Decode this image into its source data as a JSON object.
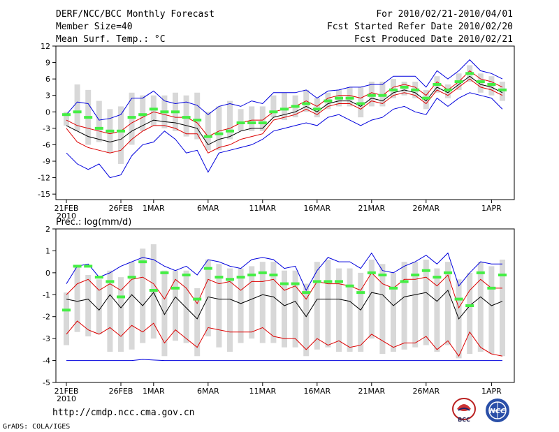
{
  "header": {
    "title": "DERF/NCC/BCC Monthly Forecast",
    "member_size": "Member Size=40",
    "variable": "Mean Surf. Temp.: °C",
    "period": "For 2010/02/21-2010/04/01",
    "started": "Fcst Started Refer Date 2010/02/20",
    "produced": "Fcst Produced Date 2010/02/21"
  },
  "footer": {
    "url": "http://cmdp.ncc.cma.gov.cn",
    "grads": "GrADS: COLA/IGES",
    "logo_bcc": "BCC",
    "logo_ncc": "NCC"
  },
  "colors": {
    "max": "#0000dd",
    "pct": "#dd0000",
    "mean": "#000000",
    "median": "#44ee44",
    "box": "#d8d8d8"
  },
  "chart_data": [
    {
      "type": "box",
      "name": "temperature",
      "ylabel": "",
      "ylim": [
        -16,
        12
      ],
      "yticks": [
        -15,
        -12,
        -9,
        -6,
        -3,
        0,
        3,
        6,
        9,
        12
      ],
      "xticks": [
        {
          "i": 0,
          "label": "21FEB",
          "sub": "2010"
        },
        {
          "i": 5,
          "label": "26FEB"
        },
        {
          "i": 8,
          "label": "1MAR"
        },
        {
          "i": 13,
          "label": "6MAR"
        },
        {
          "i": 18,
          "label": "11MAR"
        },
        {
          "i": 23,
          "label": "16MAR"
        },
        {
          "i": 28,
          "label": "21MAR"
        },
        {
          "i": 33,
          "label": "26MAR"
        },
        {
          "i": 39,
          "label": "1APR"
        }
      ],
      "max": [
        -0.5,
        1.8,
        1.5,
        -1.5,
        -1.2,
        -0.5,
        2.5,
        2.5,
        3.8,
        2.0,
        1.5,
        1.8,
        1.2,
        -0.5,
        1.0,
        1.5,
        1.0,
        2.0,
        1.5,
        3.5,
        3.5,
        3.5,
        4.0,
        2.5,
        3.8,
        4.0,
        4.5,
        4.5,
        5.0,
        5.0,
        6.5,
        6.5,
        6.5,
        4.5,
        7.5,
        6.0,
        7.5,
        9.5,
        7.5,
        7.0,
        6.0
      ],
      "p90": [
        -1.5,
        -2.5,
        -3.0,
        -3.5,
        -4.0,
        -3.5,
        -2.0,
        -1.0,
        0.0,
        -0.5,
        -1.0,
        -1.0,
        -2.0,
        -4.5,
        -3.5,
        -3.0,
        -2.0,
        -1.5,
        -1.5,
        0.0,
        0.5,
        1.0,
        2.0,
        1.0,
        2.5,
        3.0,
        3.0,
        2.5,
        3.5,
        3.0,
        4.5,
        5.0,
        4.5,
        3.0,
        5.5,
        4.0,
        5.5,
        7.5,
        6.0,
        5.5,
        4.5
      ],
      "mean": [
        -2.5,
        -3.5,
        -4.5,
        -5.0,
        -5.5,
        -5.0,
        -3.5,
        -2.5,
        -1.5,
        -1.8,
        -2.0,
        -2.5,
        -3.0,
        -6.0,
        -5.0,
        -4.5,
        -3.5,
        -3.0,
        -3.0,
        -1.0,
        -0.5,
        0.0,
        1.0,
        0.0,
        1.5,
        2.0,
        2.0,
        1.0,
        2.5,
        2.0,
        3.5,
        4.0,
        3.5,
        2.0,
        4.5,
        3.5,
        5.0,
        6.5,
        5.0,
        4.5,
        3.5
      ],
      "p10": [
        -3.0,
        -5.5,
        -6.5,
        -7.0,
        -7.5,
        -7.0,
        -5.0,
        -3.5,
        -2.5,
        -2.5,
        -3.0,
        -4.0,
        -4.0,
        -7.5,
        -6.5,
        -6.0,
        -5.0,
        -4.5,
        -4.0,
        -1.5,
        -1.0,
        -0.5,
        0.5,
        -0.5,
        1.0,
        1.5,
        1.5,
        0.5,
        2.0,
        1.5,
        3.0,
        3.5,
        3.0,
        1.5,
        4.0,
        3.0,
        4.5,
        6.0,
        4.5,
        4.0,
        3.0
      ],
      "min": [
        -7.5,
        -9.5,
        -10.5,
        -9.5,
        -12.0,
        -11.5,
        -8.0,
        -6.0,
        -5.5,
        -3.5,
        -5.0,
        -7.5,
        -7.0,
        -11.0,
        -7.5,
        -7.0,
        -6.5,
        -6.0,
        -5.0,
        -3.5,
        -3.0,
        -2.5,
        -2.0,
        -2.5,
        -1.0,
        -0.5,
        -1.5,
        -2.5,
        -1.5,
        -1.0,
        0.5,
        1.0,
        0.0,
        -0.5,
        2.5,
        1.0,
        2.5,
        3.5,
        3.0,
        2.5,
        0.5
      ],
      "box_hi": [
        0.0,
        5.0,
        4.0,
        2.0,
        0.5,
        1.0,
        3.5,
        3.0,
        3.0,
        3.0,
        3.5,
        3.0,
        3.5,
        0.0,
        1.0,
        2.0,
        0.5,
        1.0,
        1.0,
        3.0,
        3.5,
        3.0,
        4.0,
        2.5,
        3.5,
        4.0,
        4.5,
        4.5,
        5.5,
        5.5,
        6.0,
        5.5,
        5.5,
        4.0,
        6.5,
        5.0,
        7.0,
        8.5,
        7.0,
        6.5,
        5.5
      ],
      "box_lo": [
        -2.5,
        -3.5,
        -6.0,
        -5.5,
        -7.5,
        -9.5,
        -6.0,
        -3.5,
        -2.5,
        -3.0,
        -3.5,
        -4.5,
        -5.0,
        -7.0,
        -7.0,
        -5.0,
        -3.5,
        -3.5,
        -3.5,
        -1.0,
        -1.5,
        -1.0,
        0.0,
        -1.0,
        0.5,
        1.0,
        1.0,
        -1.0,
        1.0,
        1.0,
        2.5,
        3.0,
        2.5,
        0.5,
        3.5,
        2.5,
        4.0,
        5.5,
        3.5,
        3.0,
        2.0
      ],
      "median": [
        -0.5,
        0.0,
        -1.0,
        -3.0,
        -3.5,
        -3.5,
        -1.0,
        -0.5,
        0.5,
        0.0,
        0.0,
        -1.0,
        -1.5,
        -4.5,
        -4.0,
        -3.5,
        -2.0,
        -2.0,
        -2.0,
        0.0,
        0.5,
        1.0,
        1.5,
        0.5,
        2.0,
        2.5,
        2.5,
        1.5,
        3.0,
        3.0,
        4.0,
        4.5,
        4.0,
        2.5,
        5.0,
        4.0,
        5.5,
        7.0,
        5.5,
        5.0,
        4.0
      ]
    },
    {
      "type": "box",
      "name": "precipitation",
      "ylabel": "Prec.: log(mm/d)",
      "ylim": [
        -5,
        2
      ],
      "yticks": [
        -5,
        -4,
        -3,
        -2,
        -1,
        0,
        1,
        2
      ],
      "xticks": [
        {
          "i": 0,
          "label": "21FEB",
          "sub": "2010"
        },
        {
          "i": 5,
          "label": "26FEB"
        },
        {
          "i": 8,
          "label": "1MAR"
        },
        {
          "i": 13,
          "label": "6MAR"
        },
        {
          "i": 18,
          "label": "11MAR"
        },
        {
          "i": 23,
          "label": "16MAR"
        },
        {
          "i": 28,
          "label": "21MAR"
        },
        {
          "i": 33,
          "label": "26MAR"
        },
        {
          "i": 39,
          "label": "1APR"
        }
      ],
      "max": [
        -0.5,
        0.3,
        0.4,
        -0.2,
        0.0,
        0.3,
        0.5,
        0.7,
        0.6,
        0.3,
        0.1,
        0.3,
        -0.1,
        0.6,
        0.5,
        0.3,
        0.2,
        0.6,
        0.7,
        0.6,
        0.2,
        0.3,
        -0.8,
        0.1,
        0.7,
        0.5,
        0.5,
        0.2,
        0.9,
        0.1,
        0.0,
        0.3,
        0.5,
        0.8,
        0.4,
        0.9,
        -0.6,
        0.0,
        0.5,
        0.4,
        0.4
      ],
      "p90": [
        -1.0,
        -0.5,
        -0.3,
        -0.8,
        -0.5,
        -0.8,
        -0.3,
        -0.2,
        -0.5,
        -1.2,
        -0.3,
        -0.7,
        -1.4,
        -0.3,
        -0.5,
        -0.4,
        -0.8,
        -0.4,
        -0.4,
        -0.3,
        -0.8,
        -0.6,
        -1.2,
        -0.4,
        -0.5,
        -0.5,
        -0.6,
        -0.8,
        0.0,
        -0.5,
        -0.7,
        -0.3,
        -0.3,
        -0.2,
        -0.6,
        -0.1,
        -1.6,
        -0.8,
        -0.3,
        -0.7,
        -0.7
      ],
      "mean": [
        -1.2,
        -1.3,
        -1.2,
        -1.7,
        -1.0,
        -1.6,
        -1.0,
        -1.5,
        -0.9,
        -1.9,
        -1.1,
        -1.6,
        -2.1,
        -1.1,
        -1.2,
        -1.2,
        -1.4,
        -1.2,
        -1.0,
        -1.1,
        -1.5,
        -1.3,
        -2.0,
        -1.2,
        -1.2,
        -1.2,
        -1.3,
        -1.7,
        -0.9,
        -1.0,
        -1.5,
        -1.1,
        -1.0,
        -0.9,
        -1.3,
        -0.8,
        -2.1,
        -1.5,
        -1.1,
        -1.5,
        -1.3
      ],
      "p10": [
        -2.8,
        -2.2,
        -2.6,
        -2.8,
        -2.5,
        -2.9,
        -2.4,
        -2.7,
        -2.3,
        -3.2,
        -2.6,
        -3.0,
        -3.4,
        -2.5,
        -2.6,
        -2.7,
        -2.7,
        -2.7,
        -2.5,
        -2.9,
        -3.0,
        -3.0,
        -3.5,
        -3.0,
        -3.3,
        -3.1,
        -3.4,
        -3.3,
        -2.8,
        -3.1,
        -3.4,
        -3.2,
        -3.2,
        -2.9,
        -3.5,
        -3.1,
        -3.8,
        -2.7,
        -3.4,
        -3.7,
        -3.8
      ],
      "min": [
        -4.0,
        -4.0,
        -4.0,
        -4.0,
        -4.0,
        -4.0,
        -4.0,
        -3.95,
        -3.98,
        -4.0,
        -4.0,
        -4.0,
        -4.0,
        -4.0,
        -4.0,
        -4.0,
        -4.0,
        -4.0,
        -4.0,
        -4.0,
        -4.0,
        -4.0,
        -4.0,
        -4.0,
        -4.0,
        -4.0,
        -4.0,
        -4.0,
        -4.0,
        -4.0,
        -4.0,
        -4.0,
        -4.0,
        -4.0,
        -4.0,
        -4.0,
        -4.0,
        -4.0,
        -4.0,
        -4.0,
        -4.0
      ],
      "box_hi": [
        -0.9,
        0.3,
        -0.1,
        -0.3,
        0.1,
        -0.2,
        0.5,
        1.1,
        1.3,
        0.1,
        0.1,
        0.1,
        -0.7,
        0.6,
        0.4,
        0.2,
        0.2,
        0.3,
        0.5,
        0.5,
        0.1,
        0.1,
        -0.5,
        0.5,
        0.6,
        0.2,
        0.2,
        0.0,
        0.6,
        0.4,
        0.0,
        0.5,
        0.5,
        0.6,
        0.2,
        0.5,
        -0.3,
        0.0,
        0.5,
        0.3,
        0.6
      ],
      "box_lo": [
        -3.3,
        -2.7,
        -2.9,
        -2.8,
        -3.6,
        -3.6,
        -3.5,
        -3.2,
        -3.0,
        -3.8,
        -3.1,
        -3.2,
        -3.8,
        -2.9,
        -3.4,
        -3.6,
        -3.2,
        -3.0,
        -3.2,
        -3.2,
        -3.4,
        -3.4,
        -3.8,
        -3.5,
        -3.4,
        -3.6,
        -3.6,
        -3.6,
        -3.0,
        -3.7,
        -3.6,
        -3.5,
        -3.4,
        -3.3,
        -3.6,
        -3.3,
        -3.9,
        -3.7,
        -3.6,
        -3.7,
        -3.8
      ],
      "median": [
        -1.7,
        0.3,
        0.3,
        -0.2,
        -0.4,
        -1.1,
        -0.2,
        0.5,
        -0.8,
        0.0,
        -0.7,
        -0.1,
        -1.2,
        0.2,
        -0.2,
        -0.3,
        -0.2,
        -0.1,
        0.0,
        -0.1,
        -0.5,
        -0.5,
        -0.9,
        -0.4,
        -0.4,
        -0.4,
        -0.6,
        -0.9,
        0.0,
        -0.1,
        -0.7,
        -0.4,
        -0.1,
        0.1,
        -0.2,
        0.0,
        -1.2,
        -1.5,
        0.0,
        -0.7,
        -0.1
      ]
    }
  ]
}
